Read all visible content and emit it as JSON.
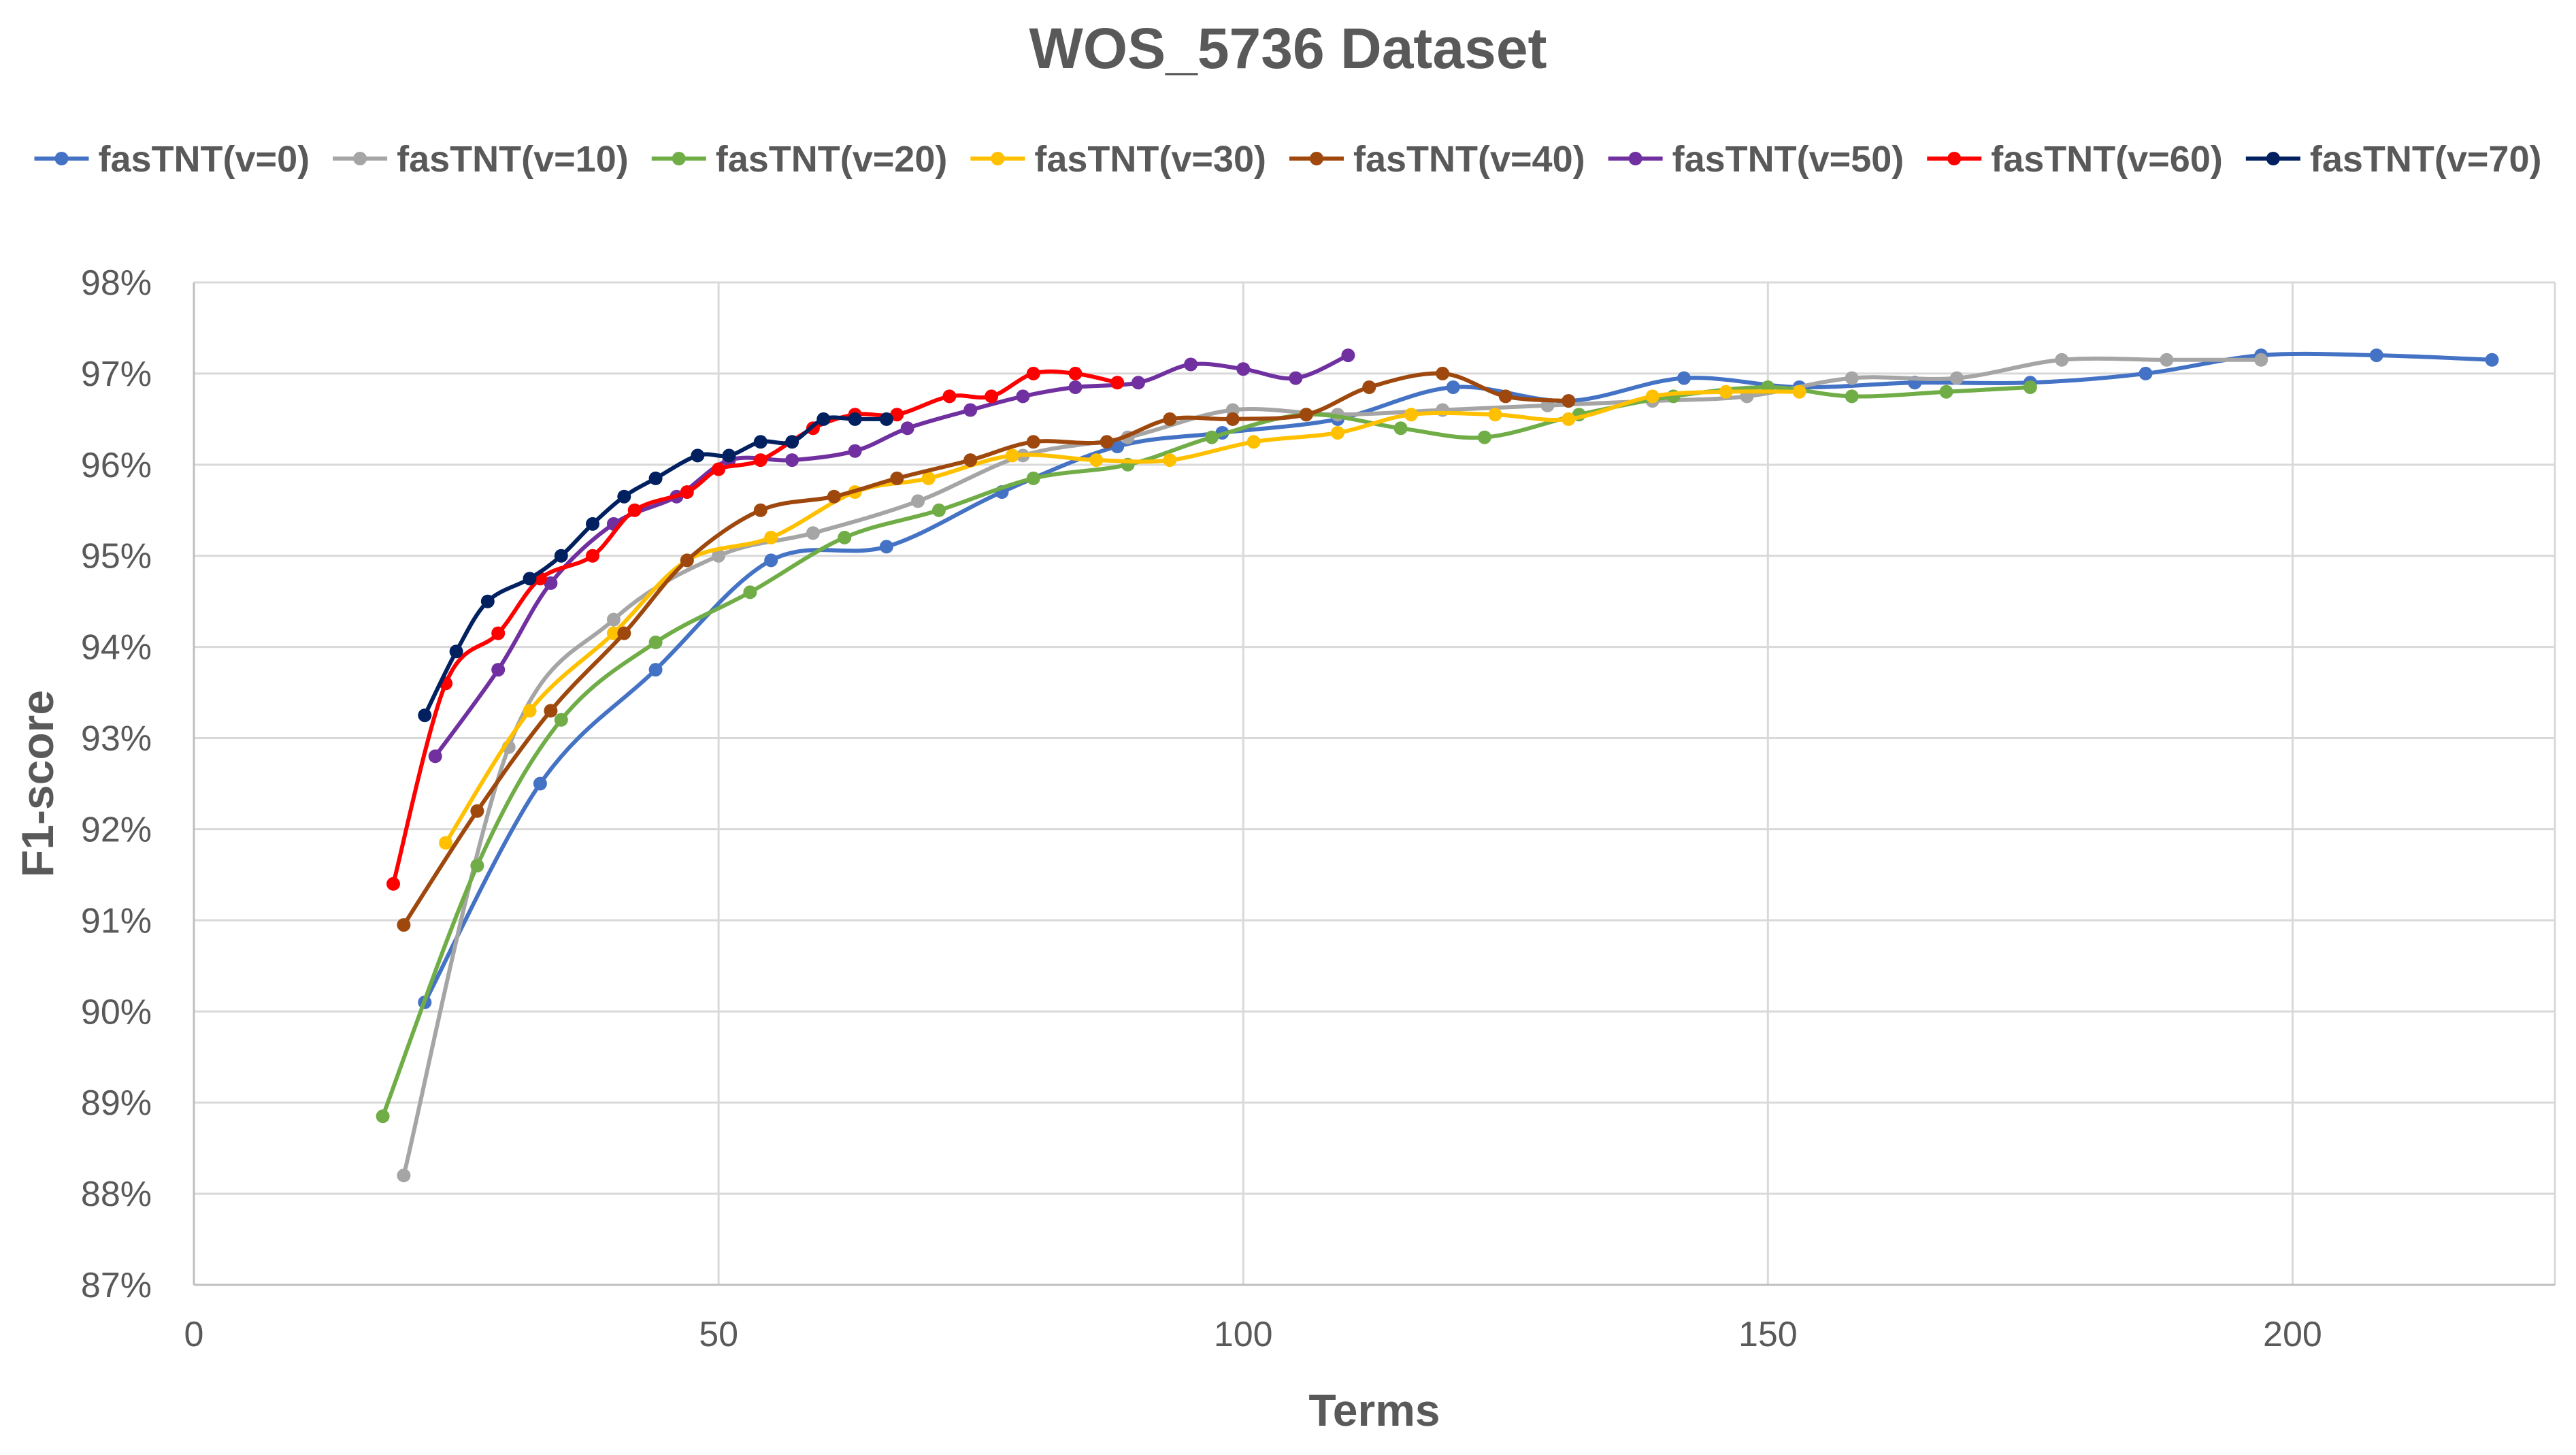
{
  "chart_data": {
    "type": "line",
    "title": "WOS_5736 Dataset",
    "xlabel": "Terms",
    "ylabel": "F1-score",
    "xlim": [
      0,
      225
    ],
    "ylim": [
      87,
      98
    ],
    "xticks": [
      0,
      50,
      100,
      150,
      200
    ],
    "xtick_labels": [
      "0",
      "50",
      "100",
      "150",
      "200"
    ],
    "yticks": [
      87,
      88,
      89,
      90,
      91,
      92,
      93,
      94,
      95,
      96,
      97,
      98
    ],
    "ytick_labels": [
      "87%",
      "88%",
      "89%",
      "90%",
      "91%",
      "92%",
      "93%",
      "94%",
      "95%",
      "96%",
      "97%",
      "98%"
    ],
    "grid": true,
    "legend_position": "top",
    "series": [
      {
        "name": "fasTNT(v=0)",
        "color": "#4472C4",
        "x": [
          22,
          33,
          44,
          55,
          66,
          77,
          88,
          98,
          109,
          120,
          131,
          142,
          153,
          164,
          175,
          186,
          197,
          208,
          219
        ],
        "y": [
          90.1,
          92.5,
          93.75,
          94.95,
          95.1,
          95.7,
          96.2,
          96.35,
          96.5,
          96.85,
          96.7,
          96.95,
          96.85,
          96.9,
          96.9,
          97.0,
          97.2,
          97.2,
          97.15
        ]
      },
      {
        "name": "fasTNT(v=10)",
        "color": "#A5A5A5",
        "x": [
          20,
          30,
          40,
          50,
          59,
          69,
          79,
          89,
          99,
          109,
          119,
          129,
          139,
          148,
          158,
          168,
          178,
          188,
          197
        ],
        "y": [
          88.2,
          92.9,
          94.3,
          95.0,
          95.25,
          95.6,
          96.1,
          96.3,
          96.6,
          96.55,
          96.6,
          96.65,
          96.7,
          96.75,
          96.95,
          96.95,
          97.15,
          97.15,
          97.15
        ]
      },
      {
        "name": "fasTNT(v=20)",
        "color": "#70AD47",
        "x": [
          18,
          27,
          35,
          44,
          53,
          62,
          71,
          80,
          89,
          97,
          106,
          115,
          123,
          132,
          141,
          150,
          158,
          167,
          175
        ],
        "y": [
          88.85,
          91.6,
          93.2,
          94.05,
          94.6,
          95.2,
          95.5,
          95.85,
          96.0,
          96.3,
          96.55,
          96.4,
          96.3,
          96.55,
          96.75,
          96.85,
          96.75,
          96.8,
          96.85
        ]
      },
      {
        "name": "fasTNT(v=30)",
        "color": "#FFC000",
        "x": [
          24,
          32,
          40,
          47,
          55,
          63,
          70,
          78,
          86,
          93,
          101,
          109,
          116,
          124,
          131,
          139,
          146,
          153
        ],
        "y": [
          91.85,
          93.3,
          94.15,
          94.95,
          95.2,
          95.7,
          95.85,
          96.1,
          96.05,
          96.05,
          96.25,
          96.35,
          96.55,
          96.55,
          96.5,
          96.75,
          96.8,
          96.8
        ]
      },
      {
        "name": "fasTNT(v=40)",
        "color": "#9E480E",
        "x": [
          20,
          27,
          34,
          41,
          47,
          54,
          61,
          67,
          74,
          80,
          87,
          93,
          99,
          106,
          112,
          119,
          125,
          131
        ],
        "y": [
          90.95,
          92.2,
          93.3,
          94.15,
          94.95,
          95.5,
          95.65,
          95.85,
          96.05,
          96.25,
          96.25,
          96.5,
          96.5,
          96.55,
          96.85,
          97.0,
          96.75,
          96.7
        ]
      },
      {
        "name": "fasTNT(v=50)",
        "color": "#7030A0",
        "x": [
          23,
          29,
          34,
          40,
          46,
          51,
          57,
          63,
          68,
          74,
          79,
          84,
          90,
          95,
          100,
          105,
          110
        ],
        "y": [
          92.8,
          93.75,
          94.7,
          95.35,
          95.65,
          96.05,
          96.05,
          96.15,
          96.4,
          96.6,
          96.75,
          96.85,
          96.9,
          97.1,
          97.05,
          96.95,
          97.2
        ]
      },
      {
        "name": "fasTNT(v=60)",
        "color": "#FF0000",
        "x": [
          19,
          24,
          29,
          33,
          38,
          42,
          47,
          50,
          54,
          59,
          63,
          67,
          72,
          76,
          80,
          84,
          88
        ],
        "y": [
          91.4,
          93.6,
          94.15,
          94.75,
          95.0,
          95.5,
          95.7,
          95.95,
          96.05,
          96.4,
          96.55,
          96.55,
          96.75,
          96.75,
          97.0,
          97.0,
          96.9
        ]
      },
      {
        "name": "fasTNT(v=70)",
        "color": "#002060",
        "x": [
          22,
          25,
          28,
          32,
          35,
          38,
          41,
          44,
          48,
          51,
          54,
          57,
          60,
          63,
          66
        ],
        "y": [
          93.25,
          93.95,
          94.5,
          94.75,
          95.0,
          95.35,
          95.65,
          95.85,
          96.1,
          96.1,
          96.25,
          96.25,
          96.5,
          96.5,
          96.5
        ]
      }
    ]
  }
}
